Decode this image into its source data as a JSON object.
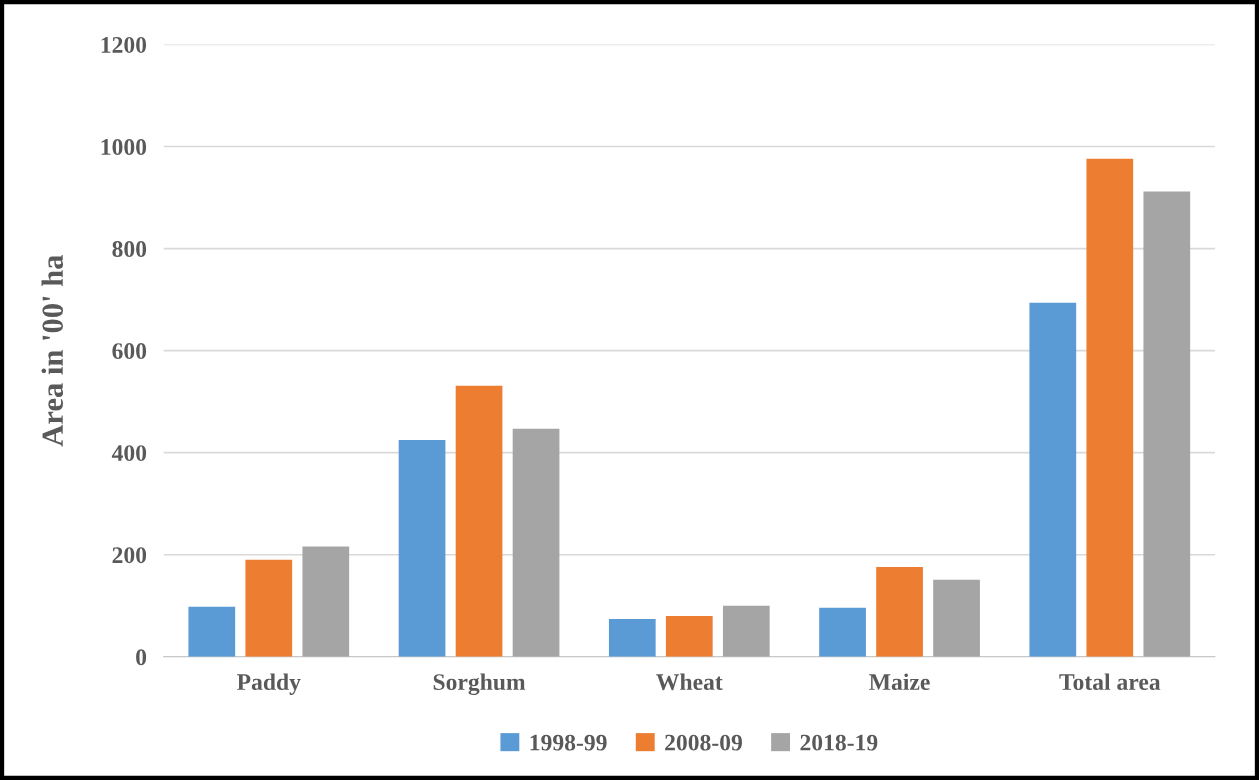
{
  "chart_data": {
    "type": "bar",
    "ylabel": "Area in '00' ha",
    "categories": [
      "Paddy",
      "Sorghum",
      "Wheat",
      "Maize",
      "Total area"
    ],
    "series": [
      {
        "name": "1998-99",
        "color": "#5b9bd5",
        "values": [
          98,
          425,
          74,
          96,
          694
        ]
      },
      {
        "name": "2008-09",
        "color": "#ed7d31",
        "values": [
          190,
          531,
          80,
          176,
          976
        ]
      },
      {
        "name": "2018-19",
        "color": "#a5a5a5",
        "values": [
          216,
          447,
          100,
          151,
          912
        ]
      }
    ],
    "ylim": [
      0,
      1200
    ],
    "yticks": [
      0,
      200,
      400,
      600,
      800,
      1000,
      1200
    ],
    "grid": "y",
    "legend": "bottom"
  }
}
